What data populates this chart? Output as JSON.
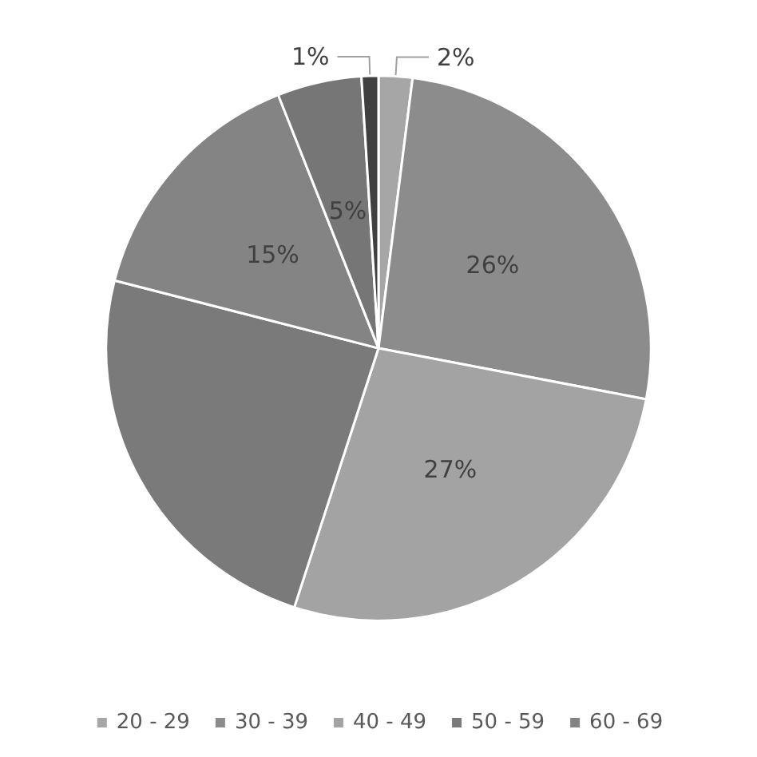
{
  "chart_data": {
    "type": "pie",
    "categories": [
      "20 - 29",
      "30 - 39",
      "40 - 49",
      "50 - 59",
      "60 - 69",
      null,
      null
    ],
    "values": [
      2,
      26,
      27,
      24,
      15,
      5,
      1
    ],
    "value_labels": [
      "2%",
      "26%",
      "27%",
      null,
      "15%",
      "5%",
      "1%"
    ],
    "colors": [
      "#a6a6a6",
      "#8c8c8c",
      "#a3a3a3",
      "#7a7a7a",
      "#848484",
      "#767676",
      "#404040"
    ],
    "legend": "bottom"
  }
}
